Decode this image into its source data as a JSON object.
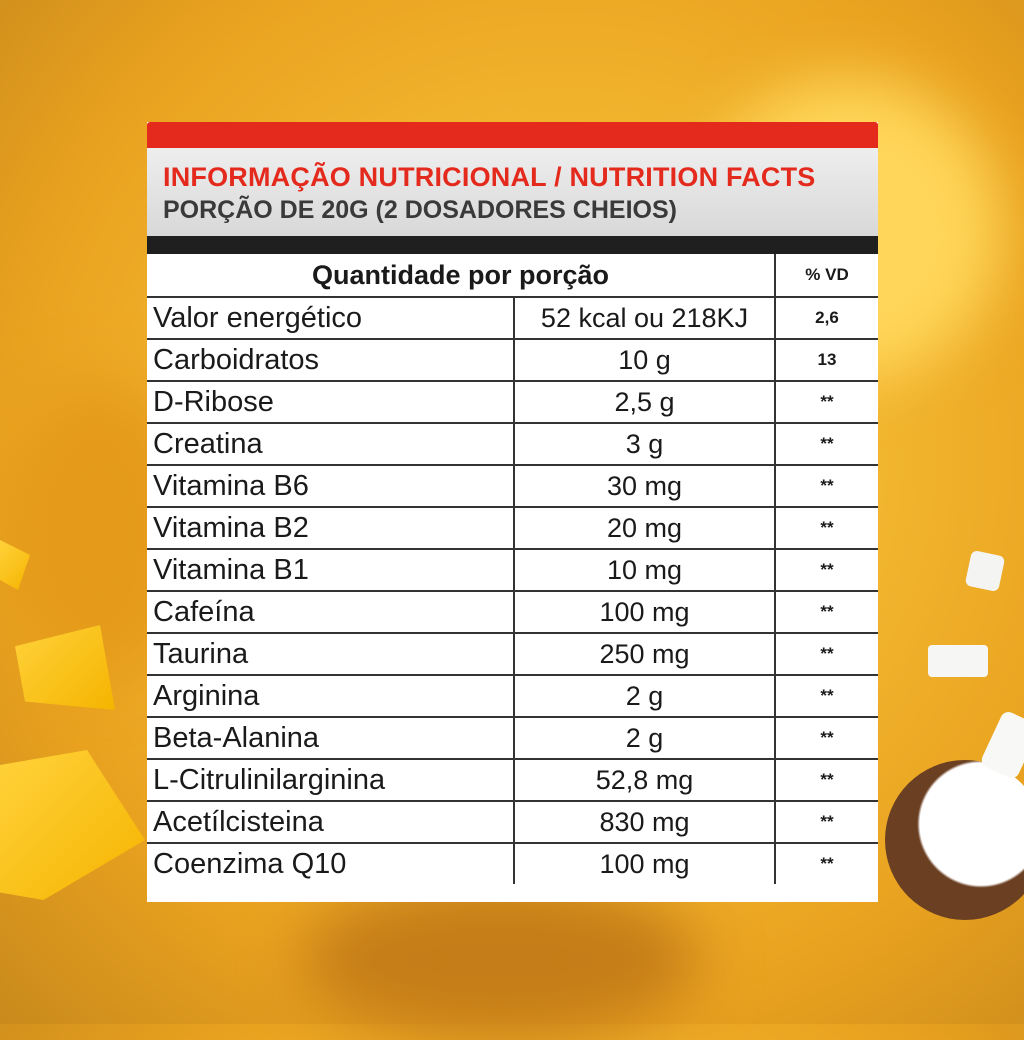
{
  "panel": {
    "title": "INFORMAÇÃO NUTRICIONAL / NUTRITION FACTS",
    "subtitle": "PORÇÃO DE 20G (2 DOSADORES CHEIOS)",
    "header_quantity": "Quantidade por porção",
    "header_vd": "% VD"
  },
  "rows": [
    {
      "name": "Valor energético",
      "amount": "52 kcal ou 218KJ",
      "vd": "2,6"
    },
    {
      "name": "Carboidratos",
      "amount": "10 g",
      "vd": "13"
    },
    {
      "name": "D-Ribose",
      "amount": "2,5 g",
      "vd": "**"
    },
    {
      "name": "Creatina",
      "amount": "3 g",
      "vd": "**"
    },
    {
      "name": "Vitamina B6",
      "amount": "30 mg",
      "vd": "**"
    },
    {
      "name": "Vitamina B2",
      "amount": "20 mg",
      "vd": "**"
    },
    {
      "name": "Vitamina B1",
      "amount": "10 mg",
      "vd": "**"
    },
    {
      "name": "Cafeína",
      "amount": "100 mg",
      "vd": "**"
    },
    {
      "name": "Taurina",
      "amount": "250 mg",
      "vd": "**"
    },
    {
      "name": "Arginina",
      "amount": "2 g",
      "vd": "**"
    },
    {
      "name": "Beta-Alanina",
      "amount": "2 g",
      "vd": "**"
    },
    {
      "name": "L-Citrulinilarginina",
      "amount": "52,8 mg",
      "vd": "**"
    },
    {
      "name": "Acetílcisteina",
      "amount": "830 mg",
      "vd": "**"
    },
    {
      "name": "Coenzima Q10",
      "amount": "100 mg",
      "vd": "**"
    }
  ],
  "colors": {
    "accent_red": "#e42a1d",
    "background_yellow": "#f2b52e"
  }
}
